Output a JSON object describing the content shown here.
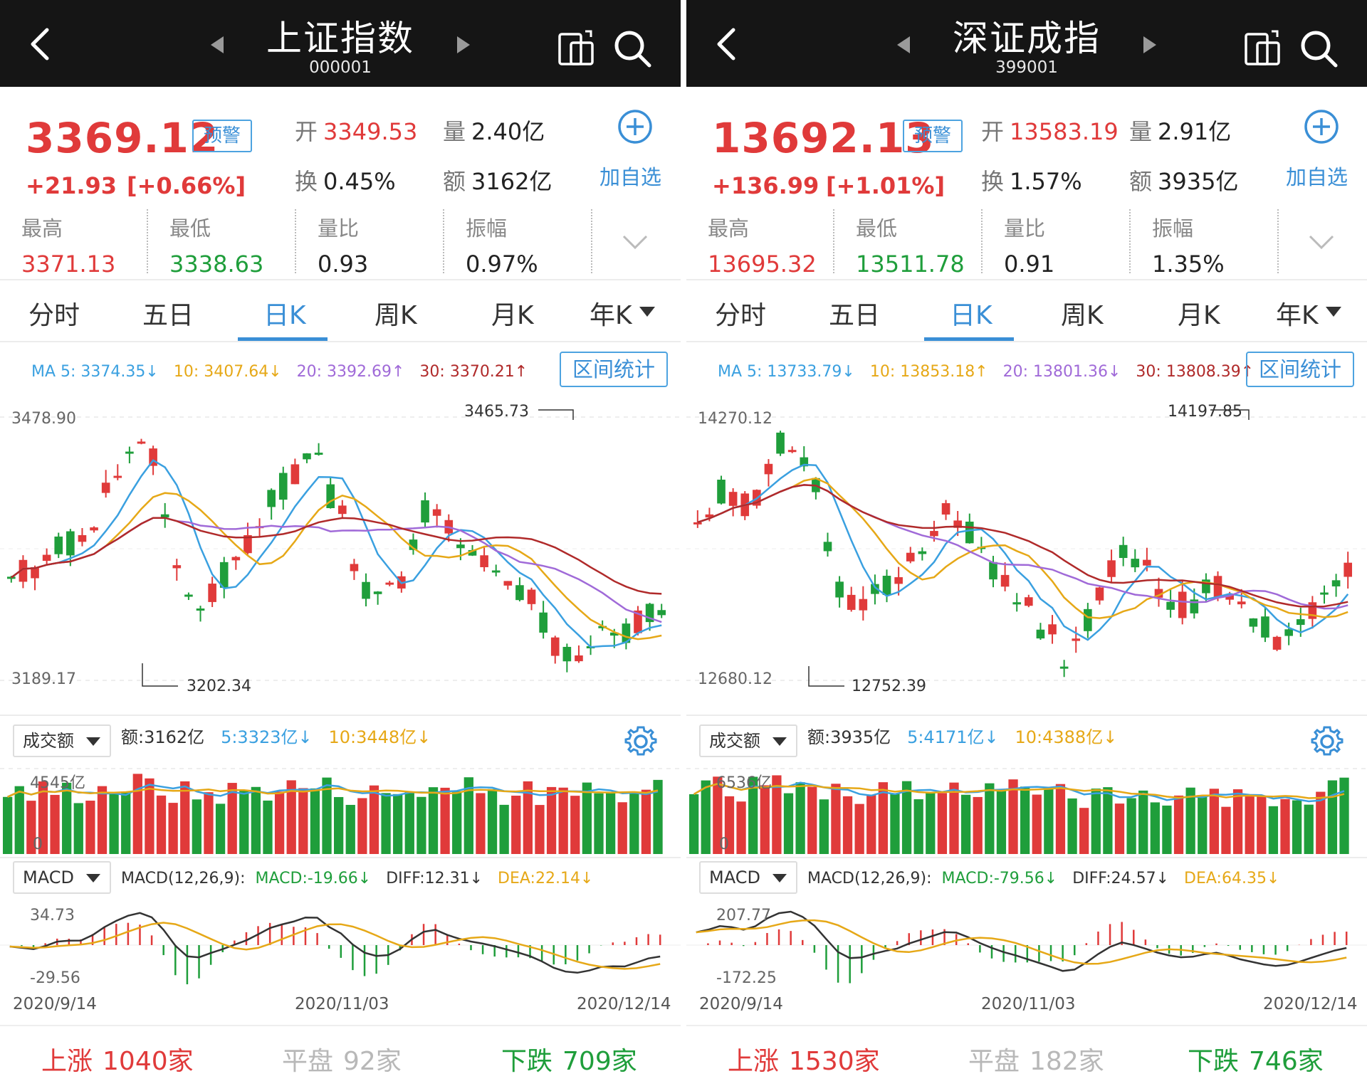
{
  "panels": [
    {
      "title": "上证指数",
      "code": "000001",
      "price": "3369.12",
      "alert_label": "预警",
      "change": "+21.93",
      "change_pct": "[+0.66%]",
      "open_label": "开",
      "open": "3349.53",
      "volume_label": "量",
      "volume": "2.40亿",
      "turnover_label": "换",
      "turnover": "0.45%",
      "amount_label": "额",
      "amount": "3162亿",
      "add_label": "加自选",
      "stats": [
        {
          "label": "最高",
          "value": "3371.13",
          "tone": "red"
        },
        {
          "label": "最低",
          "value": "3338.63",
          "tone": "green"
        },
        {
          "label": "量比",
          "value": "0.93",
          "tone": "dark"
        },
        {
          "label": "振幅",
          "value": "0.97%",
          "tone": "dark"
        }
      ],
      "tabs": [
        "分时",
        "五日",
        "日K",
        "周K",
        "月K",
        "年K"
      ],
      "active_tab": 2,
      "ma": {
        "ma5": "MA 5: 3374.35↓",
        "ma10": "10: 3407.64↓",
        "ma20": "20: 3392.69↑",
        "ma30": "30: 3370.21↑"
      },
      "range_label": "区间统计",
      "kline": {
        "axis_top": "3478.90",
        "axis_bottom": "3189.17",
        "high_mark": "3465.73",
        "low_mark": "3202.34"
      },
      "vol": {
        "selector": "成交额",
        "amount": "额:3162亿",
        "ma5": "5:3323亿↓",
        "ma10": "10:3448亿↓",
        "axis_top": "4545亿",
        "zero": "0"
      },
      "macd": {
        "selector": "MACD",
        "params": "MACD(12,26,9):",
        "macd": "MACD:-19.66↓",
        "diff": "DIFF:12.31↓",
        "dea": "DEA:22.14↓",
        "axis_top": "34.73",
        "axis_bottom": "-29.56"
      },
      "dates": [
        "2020/9/14",
        "2020/11/03",
        "2020/12/14"
      ],
      "breadth": {
        "up_label": "上涨",
        "up": "1040家",
        "flat_label": "平盘",
        "flat": "92家",
        "down_label": "下跌",
        "down": "709家"
      }
    },
    {
      "title": "深证成指",
      "code": "399001",
      "price": "13692.13",
      "alert_label": "预警",
      "change": "+136.99",
      "change_pct": "[+1.01%]",
      "open_label": "开",
      "open": "13583.19",
      "volume_label": "量",
      "volume": "2.91亿",
      "turnover_label": "换",
      "turnover": "1.57%",
      "amount_label": "额",
      "amount": "3935亿",
      "add_label": "加自选",
      "stats": [
        {
          "label": "最高",
          "value": "13695.32",
          "tone": "red"
        },
        {
          "label": "最低",
          "value": "13511.78",
          "tone": "green"
        },
        {
          "label": "量比",
          "value": "0.91",
          "tone": "dark"
        },
        {
          "label": "振幅",
          "value": "1.35%",
          "tone": "dark"
        }
      ],
      "tabs": [
        "分时",
        "五日",
        "日K",
        "周K",
        "月K",
        "年K"
      ],
      "active_tab": 2,
      "ma": {
        "ma5": "MA 5: 13733.79↓",
        "ma10": "10: 13853.18↑",
        "ma20": "20: 13801.36↓",
        "ma30": "30: 13808.39↑"
      },
      "range_label": "区间统计",
      "kline": {
        "axis_top": "14270.12",
        "axis_bottom": "12680.12",
        "high_mark": "14197.85",
        "low_mark": "12752.39"
      },
      "vol": {
        "selector": "成交额",
        "amount": "额:3935亿",
        "ma5": "5:4171亿↓",
        "ma10": "10:4388亿↓",
        "axis_top": "6536亿",
        "zero": "0"
      },
      "macd": {
        "selector": "MACD",
        "params": "MACD(12,26,9):",
        "macd": "MACD:-79.56↓",
        "diff": "DIFF:24.57↓",
        "dea": "DEA:64.35↓",
        "axis_top": "207.77",
        "axis_bottom": "-172.25"
      },
      "dates": [
        "2020/9/14",
        "2020/11/03",
        "2020/12/14"
      ],
      "breadth": {
        "up_label": "上涨",
        "up": "1530家",
        "flat_label": "平盘",
        "flat": "182家",
        "down_label": "下跌",
        "down": "746家"
      }
    }
  ],
  "colors": {
    "up": "#e03a3a",
    "down": "#1f9e3b",
    "accent": "#3a8fd6",
    "ma5": "#3aa0e0",
    "ma10": "#e6a817",
    "ma20": "#a06ad8",
    "ma30": "#b02a2a"
  },
  "icons": [
    "back-arrow-icon",
    "prev-triangle-icon",
    "next-triangle-icon",
    "landscape-icon",
    "search-icon",
    "add-circle-icon",
    "chevron-down-icon",
    "gear-icon"
  ]
}
